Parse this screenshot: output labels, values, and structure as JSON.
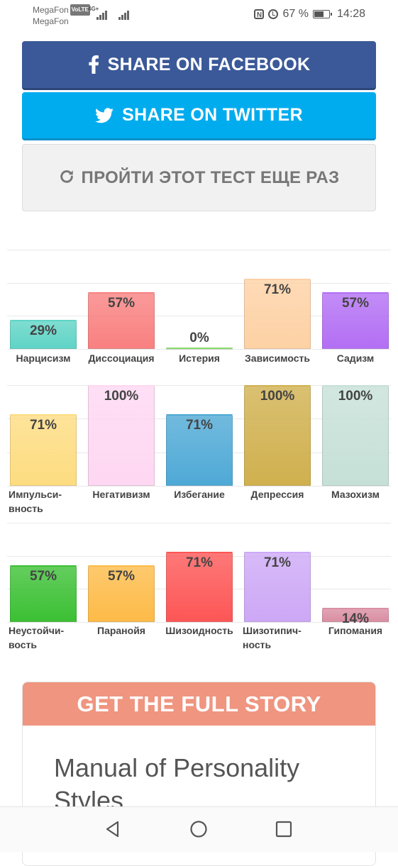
{
  "status_bar": {
    "carrier_1": "MegaFon",
    "volte": "VoLTE",
    "carrier_2": "MegaFon",
    "network_type": "4G+",
    "battery": "67 %",
    "time": "14:28"
  },
  "share": {
    "facebook_label": "SHARE ON FACEBOOK",
    "twitter_label": "SHARE ON TWITTER",
    "retake_label": "ПРОЙТИ ЭТОТ ТЕСТ ЕЩЕ РАЗ"
  },
  "chart_data": [
    {
      "type": "bar",
      "categories": [
        "Нарцисизм",
        "Диссоциация",
        "Истерия",
        "Зависимость",
        "Садизм"
      ],
      "values": [
        29,
        57,
        0,
        71,
        57
      ],
      "value_labels": [
        "29%",
        "57%",
        "0%",
        "71%",
        "57%"
      ],
      "colors": [
        "#5fd4c6",
        "#f98080",
        "#8bdc6c",
        "#fdd1a4",
        "#b36ff4"
      ],
      "ylim": [
        0,
        100
      ]
    },
    {
      "type": "bar",
      "categories": [
        "Импульси-вность",
        "Негативизм",
        "Избегание",
        "Депрессия",
        "Мазохизм"
      ],
      "values": [
        71,
        100,
        71,
        100,
        100
      ],
      "value_labels": [
        "71%",
        "100%",
        "71%",
        "100%",
        "100%"
      ],
      "colors": [
        "#fddc80",
        "#fed7f2",
        "#4ea9d6",
        "#d0b04e",
        "#c6e0d7"
      ],
      "ylim": [
        0,
        100
      ]
    },
    {
      "type": "bar",
      "categories": [
        "Неустойчи-вость",
        "Паранойя",
        "Шизоидность",
        "Шизотипич-ность",
        "Гипомания"
      ],
      "values": [
        57,
        57,
        71,
        71,
        14
      ],
      "value_labels": [
        "57%",
        "57%",
        "71%",
        "71%",
        "14%"
      ],
      "colors": [
        "#3cc034",
        "#fdbb48",
        "#fd5656",
        "#cda8f6",
        "#d98ea2"
      ],
      "ylim": [
        0,
        100
      ]
    }
  ],
  "story": {
    "header": "GET THE FULL STORY",
    "title": "Manual of Personality Styles"
  },
  "nav": {
    "back_icon": "back-triangle-icon",
    "home_icon": "home-circle-icon",
    "recent_icon": "recent-apps-square-icon"
  }
}
